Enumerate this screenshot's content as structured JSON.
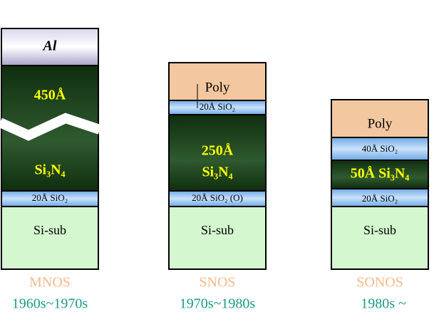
{
  "stacks": [
    {
      "name": "MNOS",
      "era": "1960s~1970s",
      "layers": [
        {
          "lines": [
            "Al"
          ]
        },
        {
          "lines": [
            "450Å",
            "Si₃N₄"
          ]
        },
        {
          "lines": [
            "20Å SiO₂"
          ]
        },
        {
          "lines": [
            "Si-sub"
          ]
        }
      ]
    },
    {
      "name": "SNOS",
      "era": "1970s~1980s",
      "layers": [
        {
          "lines": [
            "Poly"
          ]
        },
        {
          "lines": [
            "20Å SiO₂"
          ]
        },
        {
          "lines": [
            "250Å",
            "Si₃N₄"
          ]
        },
        {
          "lines": [
            "20Å SiO₂ (O)"
          ]
        },
        {
          "lines": [
            "Si-sub"
          ]
        }
      ]
    },
    {
      "name": "SONOS",
      "era": "1980s ~",
      "layers": [
        {
          "lines": [
            "Poly"
          ]
        },
        {
          "lines": [
            "40Å SiO₂"
          ]
        },
        {
          "lines": [
            "50Å Si₃N₄"
          ]
        },
        {
          "lines": [
            "20Å SiO₂"
          ]
        },
        {
          "lines": [
            "Si-sub"
          ]
        }
      ]
    }
  ]
}
